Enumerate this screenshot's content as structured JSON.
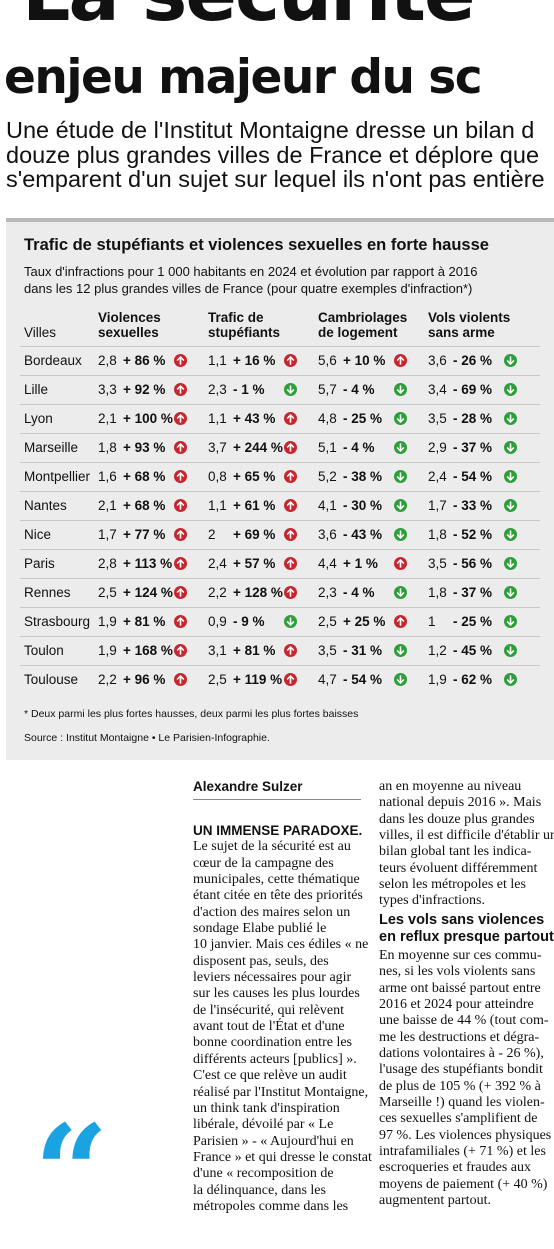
{
  "headline": {
    "line1": "La sécurité",
    "line2": "enjeu majeur du sc"
  },
  "standfirst": [
    "Une étude de l'Institut Montaigne dresse un bilan d",
    "douze plus grandes villes de France et déplore que",
    "s'emparent d'un sujet sur lequel ils n'ont pas entière"
  ],
  "infographic": {
    "title": "Trafic de stupéfiants et violences sexuelles en forte hausse",
    "subtitle_lines": [
      "Taux d'infractions pour 1 000 habitants en 2024 et évolution par rapport à 2016",
      "dans les 12 plus grandes villes de France (pour quatre exemples d'infraction*)"
    ],
    "city_header": "Villes",
    "columns": [
      {
        "line1": "Violences",
        "line2": "sexuelles"
      },
      {
        "line1": "Trafic de",
        "line2": "stupéfiants"
      },
      {
        "line1": "Cambriolages",
        "line2": "de logement"
      },
      {
        "line1": "Vols violents",
        "line2": "sans arme"
      }
    ],
    "arrow_colors": {
      "up": "#c6262e",
      "down": "#2e9e3a"
    },
    "rows": [
      {
        "city": "Bordeaux",
        "cells": [
          {
            "rate": "2,8",
            "evo": "+ 86 %",
            "dir": "up"
          },
          {
            "rate": "1,1",
            "evo": "+ 16 %",
            "dir": "up"
          },
          {
            "rate": "5,6",
            "evo": "+ 10 %",
            "dir": "up"
          },
          {
            "rate": "3,6",
            "evo": "- 26 %",
            "dir": "down"
          }
        ]
      },
      {
        "city": "Lille",
        "cells": [
          {
            "rate": "3,3",
            "evo": "+ 92 %",
            "dir": "up"
          },
          {
            "rate": "2,3",
            "evo": "- 1 %",
            "dir": "down"
          },
          {
            "rate": "5,7",
            "evo": "- 4 %",
            "dir": "down"
          },
          {
            "rate": "3,4",
            "evo": "- 69 %",
            "dir": "down"
          }
        ]
      },
      {
        "city": "Lyon",
        "cells": [
          {
            "rate": "2,1",
            "evo": "+ 100 %",
            "dir": "up"
          },
          {
            "rate": "1,1",
            "evo": "+ 43 %",
            "dir": "up"
          },
          {
            "rate": "4,8",
            "evo": "- 25 %",
            "dir": "down"
          },
          {
            "rate": "3,5",
            "evo": "- 28 %",
            "dir": "down"
          }
        ]
      },
      {
        "city": "Marseille",
        "cells": [
          {
            "rate": "1,8",
            "evo": "+ 93 %",
            "dir": "up"
          },
          {
            "rate": "3,7",
            "evo": "+ 244 %",
            "dir": "up"
          },
          {
            "rate": "5,1",
            "evo": "- 4 %",
            "dir": "down"
          },
          {
            "rate": "2,9",
            "evo": "- 37 %",
            "dir": "down"
          }
        ]
      },
      {
        "city": "Montpellier",
        "cells": [
          {
            "rate": "1,6",
            "evo": "+ 68 %",
            "dir": "up"
          },
          {
            "rate": "0,8",
            "evo": "+ 65 %",
            "dir": "up"
          },
          {
            "rate": "5,2",
            "evo": "- 38 %",
            "dir": "down"
          },
          {
            "rate": "2,4",
            "evo": "- 54 %",
            "dir": "down"
          }
        ]
      },
      {
        "city": "Nantes",
        "cells": [
          {
            "rate": "2,1",
            "evo": "+ 68 %",
            "dir": "up"
          },
          {
            "rate": "1,1",
            "evo": "+ 61 %",
            "dir": "up"
          },
          {
            "rate": "4,1",
            "evo": "- 30 %",
            "dir": "down"
          },
          {
            "rate": "1,7",
            "evo": "- 33 %",
            "dir": "down"
          }
        ]
      },
      {
        "city": "Nice",
        "cells": [
          {
            "rate": "1,7",
            "evo": "+ 77 %",
            "dir": "up"
          },
          {
            "rate": "2",
            "evo": "+ 69 %",
            "dir": "up"
          },
          {
            "rate": "3,6",
            "evo": "- 43 %",
            "dir": "down"
          },
          {
            "rate": "1,8",
            "evo": "- 52 %",
            "dir": "down"
          }
        ]
      },
      {
        "city": "Paris",
        "cells": [
          {
            "rate": "2,8",
            "evo": "+ 113 %",
            "dir": "up"
          },
          {
            "rate": "2,4",
            "evo": "+ 57 %",
            "dir": "up"
          },
          {
            "rate": "4,4",
            "evo": "+ 1 %",
            "dir": "up"
          },
          {
            "rate": "3,5",
            "evo": "- 56 %",
            "dir": "down"
          }
        ]
      },
      {
        "city": "Rennes",
        "cells": [
          {
            "rate": "2,5",
            "evo": "+ 124 %",
            "dir": "up"
          },
          {
            "rate": "2,2",
            "evo": "+ 128 %",
            "dir": "up"
          },
          {
            "rate": "2,3",
            "evo": "- 4 %",
            "dir": "down"
          },
          {
            "rate": "1,8",
            "evo": "- 37 %",
            "dir": "down"
          }
        ]
      },
      {
        "city": "Strasbourg",
        "cells": [
          {
            "rate": "1,9",
            "evo": "+ 81 %",
            "dir": "up"
          },
          {
            "rate": "0,9",
            "evo": "- 9 %",
            "dir": "down"
          },
          {
            "rate": "2,5",
            "evo": "+ 25 %",
            "dir": "up"
          },
          {
            "rate": "1",
            "evo": "- 25 %",
            "dir": "down"
          }
        ]
      },
      {
        "city": "Toulon",
        "cells": [
          {
            "rate": "1,9",
            "evo": "+ 168 %",
            "dir": "up"
          },
          {
            "rate": "3,1",
            "evo": "+ 81 %",
            "dir": "up"
          },
          {
            "rate": "3,5",
            "evo": "- 31 %",
            "dir": "down"
          },
          {
            "rate": "1,2",
            "evo": "- 45 %",
            "dir": "down"
          }
        ]
      },
      {
        "city": "Toulouse",
        "cells": [
          {
            "rate": "2,2",
            "evo": "+ 96 %",
            "dir": "up"
          },
          {
            "rate": "2,5",
            "evo": "+ 119 %",
            "dir": "up"
          },
          {
            "rate": "4,7",
            "evo": "- 54 %",
            "dir": "down"
          },
          {
            "rate": "1,9",
            "evo": "- 62 %",
            "dir": "down"
          }
        ]
      }
    ],
    "footnote": "* Deux parmi les plus fortes hausses, deux parmi les plus fortes baisses",
    "source": "Source : Institut Montaigne • Le Parisien-Infographie."
  },
  "article": {
    "byline": "Alexandre Sulzer",
    "col1_lead": "UN IMMENSE PARADOXE.",
    "col1_lines": [
      "Le sujet de la sécurité est au",
      "cœur de la campagne des",
      "municipales, cette thématique",
      "étant citée en tête des priorités",
      "d'action des maires selon un",
      "sondage Elabe publié le",
      "10 janvier. Mais ces édiles « ne",
      "disposent pas, seuls, des",
      "leviers nécessaires pour agir",
      "sur les causes les plus lourdes",
      "de l'insécurité, qui relèvent",
      "avant tout de l'État et d'une",
      "bonne coordination entre les",
      "différents acteurs [publics] ».",
      "C'est ce que relève un audit",
      "réalisé par l'Institut Montaigne,",
      "un think tank d'inspiration",
      "libérale, dévoilé par « Le",
      "Parisien » - « Aujourd'hui en",
      "France » et qui dresse le constat",
      "d'une « recomposition de",
      "la délinquance, dans les",
      "métropoles comme dans les"
    ],
    "col2a_lines": [
      "an en moyenne au niveau",
      "national depuis 2016 ». Mais",
      "dans les douze plus grandes",
      "villes, il est difficile d'établir un",
      "bilan global tant les indica-",
      "teurs évoluent différemment",
      "selon les métropoles et les",
      "types d'infractions."
    ],
    "subhead_lines": [
      "Les vols sans violences",
      "en reflux presque partout"
    ],
    "col2b_lines": [
      "En moyenne sur ces commu-",
      "nes, si les vols violents sans",
      "arme ont baissé partout entre",
      "2016 et 2024 pour atteindre",
      "une baisse de 44 % (tout com-",
      "me les destructions et dégra-",
      "dations volontaires à - 26 %),",
      "l'usage des stupéfiants bondit",
      "de plus de 105 % (+ 392 % à",
      "Marseille !) quand les violen-",
      "ces sexuelles s'amplifient de",
      "97 %. Les violences physiques",
      "intrafamiliales (+ 71 %) et les",
      "escroqueries et fraudes aux",
      "moyens de paiement (+ 40 %)",
      "augmentent partout."
    ],
    "quote_glyph": "“",
    "quote_color": "#1aa3e0"
  }
}
